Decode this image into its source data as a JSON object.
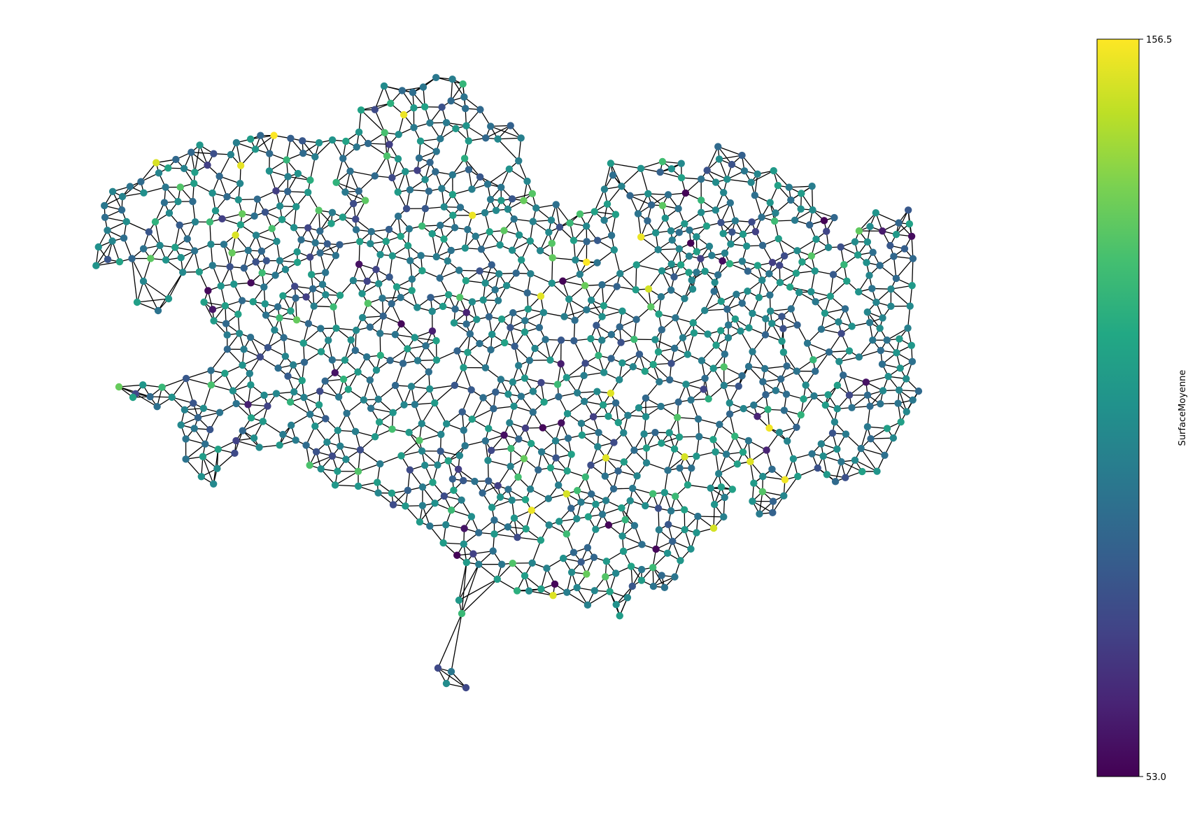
{
  "chart_data": {
    "type": "scatter",
    "title": "",
    "description_kind": "network graph of nodes colored by value",
    "colormap": "viridis",
    "colorbar": {
      "label": "SurfaceMoyenne",
      "min": 53.0,
      "max": 156.5,
      "min_label": "53.0",
      "max_label": "156.5",
      "position": "right"
    },
    "node_color_default": "#2a788e",
    "edge_color": "#000000",
    "grid": false,
    "axes_visible": false,
    "value_counts_estimate": {
      "nodes_approx": 1200,
      "notes": "Dense triangulated mesh of nodes; most values mid-range (teal/blue), few high (yellow) and few low (dark purple)."
    }
  }
}
